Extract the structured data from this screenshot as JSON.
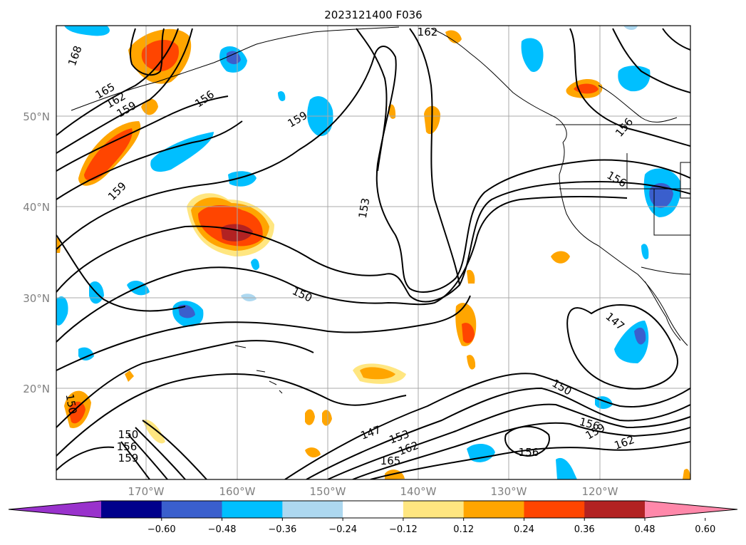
{
  "map": {
    "title": "2023121400 F036",
    "lat_labels": [
      "50°N",
      "40°N",
      "30°N",
      "20°N"
    ],
    "lon_labels": [
      "170°W",
      "160°W",
      "150°W",
      "140°W",
      "130°W",
      "120°W"
    ],
    "contour_labels": [
      "168",
      "165",
      "162",
      "159",
      "156",
      "162",
      "159",
      "156",
      "159",
      "156",
      "153",
      "150",
      "150",
      "147",
      "153",
      "162",
      "165",
      "147",
      "156",
      "159",
      "162",
      "150",
      "156",
      "150",
      "156",
      "159"
    ],
    "contour_color": "#000000",
    "gridline_color": "#a9a9a9"
  },
  "colorbar": {
    "tick_labels": [
      "−0.60",
      "−0.48",
      "−0.36",
      "−0.24",
      "−0.12",
      "0.12",
      "0.24",
      "0.36",
      "0.48",
      "0.60"
    ],
    "colors": [
      "#9932cc",
      "#00008b",
      "#3a5fcd",
      "#00bfff",
      "#add8f0",
      "#ffffff",
      "#ffe680",
      "#ffa500",
      "#ff4500",
      "#b22222",
      "#ff88aa"
    ],
    "extend": "both"
  }
}
